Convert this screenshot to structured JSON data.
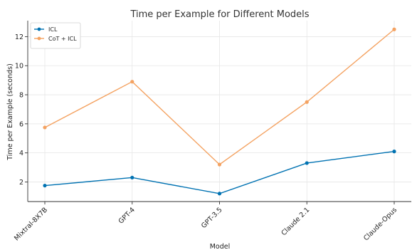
{
  "chart_data": {
    "type": "line",
    "title": "Time per Example for Different Models",
    "xlabel": "Model",
    "ylabel": "Time per Example (seconds)",
    "categories": [
      "Mixtral-8X7B",
      "GPT-4",
      "GPT-3.5",
      "Claude 2.1",
      "Claude-Opus"
    ],
    "yticks": [
      2,
      4,
      6,
      8,
      10,
      12
    ],
    "ylim": [
      0.65,
      13.1
    ],
    "grid": true,
    "legend_position": "top-left",
    "series": [
      {
        "name": "ICL",
        "color": "#0072B2",
        "values": [
          1.75,
          2.3,
          1.2,
          3.3,
          4.1
        ]
      },
      {
        "name": "CoT + ICL",
        "color": "#F4A261",
        "values": [
          5.75,
          8.9,
          3.2,
          7.5,
          12.5
        ]
      }
    ]
  }
}
